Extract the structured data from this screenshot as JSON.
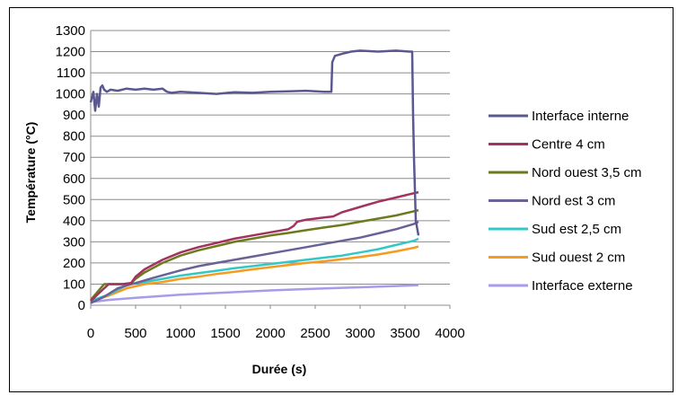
{
  "chart_data": {
    "type": "line",
    "xlabel": "Durée (s)",
    "ylabel": "Température (°C)",
    "xlim": [
      0,
      4000
    ],
    "ylim": [
      0,
      1300
    ],
    "xticks": [
      0,
      500,
      1000,
      1500,
      2000,
      2500,
      3000,
      3500,
      4000
    ],
    "yticks": [
      0,
      100,
      200,
      300,
      400,
      500,
      600,
      700,
      800,
      900,
      1000,
      1100,
      1200,
      1300
    ],
    "grid": "horizontal",
    "legend_position": "right",
    "series": [
      {
        "name": "Interface interne",
        "color": "#5B5890",
        "x": [
          0,
          30,
          50,
          70,
          90,
          110,
          130,
          150,
          180,
          220,
          300,
          400,
          500,
          600,
          700,
          800,
          850,
          900,
          1000,
          1200,
          1400,
          1600,
          1800,
          2000,
          2200,
          2400,
          2600,
          2680,
          2690,
          2720,
          2800,
          2900,
          3000,
          3200,
          3400,
          3550,
          3580,
          3590,
          3600,
          3620,
          3650
        ],
        "y": [
          960,
          1010,
          920,
          1000,
          940,
          1030,
          1040,
          1020,
          1010,
          1020,
          1015,
          1025,
          1020,
          1025,
          1020,
          1025,
          1010,
          1005,
          1010,
          1005,
          1000,
          1008,
          1005,
          1010,
          1012,
          1015,
          1010,
          1010,
          1150,
          1180,
          1190,
          1200,
          1205,
          1200,
          1205,
          1200,
          1200,
          900,
          700,
          400,
          330
        ]
      },
      {
        "name": "Centre 4 cm",
        "color": "#A2325F",
        "x": [
          0,
          100,
          200,
          350,
          450,
          500,
          600,
          800,
          1000,
          1200,
          1400,
          1600,
          1800,
          2000,
          2200,
          2260,
          2300,
          2400,
          2600,
          2700,
          2800,
          3000,
          3200,
          3400,
          3600,
          3650
        ],
        "y": [
          20,
          60,
          100,
          100,
          105,
          135,
          170,
          215,
          250,
          275,
          295,
          315,
          330,
          345,
          360,
          375,
          395,
          405,
          415,
          420,
          440,
          465,
          490,
          510,
          530,
          535
        ]
      },
      {
        "name": "Nord ouest 3,5 cm",
        "color": "#6C7A1E",
        "x": [
          0,
          100,
          150,
          200,
          300,
          400,
          450,
          500,
          600,
          800,
          1000,
          1200,
          1400,
          1600,
          1800,
          2000,
          2200,
          2400,
          2600,
          2800,
          3000,
          3200,
          3400,
          3600,
          3650
        ],
        "y": [
          25,
          75,
          100,
          100,
          100,
          100,
          105,
          125,
          155,
          200,
          235,
          260,
          280,
          300,
          315,
          330,
          342,
          355,
          368,
          380,
          395,
          410,
          425,
          445,
          450
        ]
      },
      {
        "name": "Nord est 3 cm",
        "color": "#6A6197",
        "x": [
          0,
          150,
          300,
          450,
          500,
          700,
          1000,
          1200,
          1400,
          1600,
          1800,
          2000,
          2200,
          2400,
          2600,
          2800,
          3000,
          3200,
          3400,
          3600,
          3650
        ],
        "y": [
          10,
          40,
          80,
          100,
          105,
          130,
          165,
          185,
          200,
          215,
          230,
          245,
          260,
          275,
          290,
          305,
          320,
          340,
          360,
          385,
          395
        ]
      },
      {
        "name": "Sud est 2,5 cm",
        "color": "#33C8C8",
        "x": [
          0,
          200,
          400,
          450,
          600,
          800,
          1000,
          1200,
          1400,
          1600,
          1800,
          2000,
          2200,
          2400,
          2600,
          2800,
          3000,
          3200,
          3400,
          3600,
          3650
        ],
        "y": [
          20,
          50,
          95,
          100,
          110,
          125,
          140,
          152,
          163,
          175,
          185,
          195,
          205,
          215,
          225,
          235,
          250,
          265,
          285,
          305,
          315
        ]
      },
      {
        "name": "Sud ouest 2 cm",
        "color": "#F79A1E",
        "x": [
          0,
          200,
          400,
          600,
          800,
          1000,
          1200,
          1400,
          1600,
          1800,
          2000,
          2200,
          2400,
          2600,
          2800,
          3000,
          3200,
          3400,
          3600,
          3650
        ],
        "y": [
          20,
          45,
          80,
          100,
          110,
          125,
          135,
          148,
          158,
          170,
          180,
          190,
          200,
          208,
          218,
          228,
          240,
          255,
          272,
          278
        ]
      },
      {
        "name": "Interface externe",
        "color": "#A79BEA",
        "x": [
          0,
          200,
          500,
          1000,
          1500,
          2000,
          2500,
          3000,
          3500,
          3650
        ],
        "y": [
          15,
          25,
          35,
          50,
          60,
          70,
          78,
          85,
          92,
          95
        ]
      }
    ]
  }
}
